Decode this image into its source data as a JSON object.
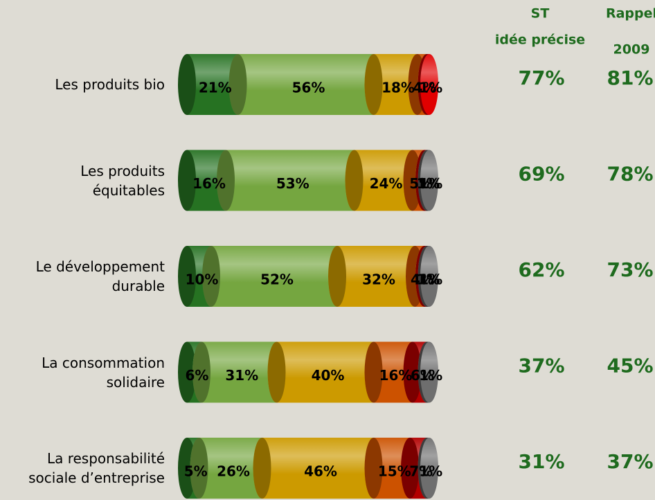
{
  "chart_data": {
    "type": "stacked-bar",
    "categories": [
      "Les produits bio",
      "Les produits\néquitables",
      "Le développement\ndurable",
      "La consommation\nsolidaire",
      "La responsabilité\nsociale d’entreprise"
    ],
    "series": [
      {
        "color": "#2f8f2a",
        "values": [
          21,
          16,
          10,
          6,
          5
        ],
        "value_labels": [
          "21%",
          "16%",
          "10%",
          "6%",
          "5%"
        ]
      },
      {
        "color": "#92d050",
        "values": [
          56,
          53,
          52,
          31,
          26
        ],
        "value_labels": [
          "56%",
          "53%",
          "52%",
          "31%",
          "26%"
        ]
      },
      {
        "color": "#ffc000",
        "values": [
          18,
          24,
          32,
          40,
          46
        ],
        "value_labels": [
          "18%",
          "24%",
          "32%",
          "40%",
          "46%"
        ]
      },
      {
        "color": "#ff6600",
        "values": [
          4,
          5,
          4,
          16,
          15
        ],
        "value_labels": [
          "4%",
          "5%",
          "4%",
          "16%",
          "15%"
        ]
      },
      {
        "color": "#e00000",
        "values": [
          1,
          1,
          1,
          6,
          7
        ],
        "value_labels": [
          "1%",
          "1%",
          "1%",
          "6%",
          "7%"
        ]
      },
      {
        "color": "#6e6e6e",
        "values": [
          null,
          1,
          1,
          1,
          1
        ],
        "value_labels": [
          null,
          "1%",
          "1%",
          "1%",
          "1%"
        ]
      }
    ],
    "columns": [
      {
        "header": [
          "ST",
          "idée précise"
        ],
        "values": [
          77,
          69,
          62,
          37,
          31
        ],
        "value_labels": [
          "77%",
          "69%",
          "62%",
          "37%",
          "31%"
        ]
      },
      {
        "header": [
          "Rappel",
          "2009"
        ],
        "values": [
          81,
          78,
          73,
          45,
          37
        ],
        "value_labels": [
          "81%",
          "78%",
          "73%",
          "45%",
          "37%"
        ]
      }
    ]
  }
}
